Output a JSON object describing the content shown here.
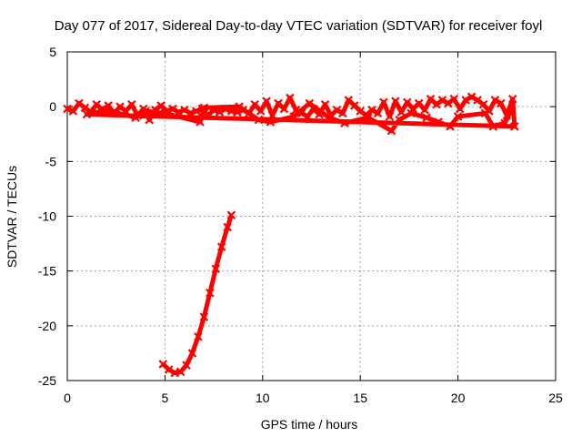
{
  "chart_data": {
    "type": "scatter",
    "title": "Day 077 of 2017, Sidereal Day-to-day VTEC variation (SDTVAR) for receiver foyl",
    "xlabel": "GPS time / hours",
    "ylabel": "SDTVAR / TECUs",
    "xlim": [
      0,
      25
    ],
    "ylim": [
      -25,
      5
    ],
    "xticks": [
      0,
      5,
      10,
      15,
      20,
      25
    ],
    "yticks": [
      5,
      0,
      -5,
      -10,
      -15,
      -20,
      -25
    ],
    "grid": true,
    "series": [
      {
        "name": "sdtvar-near-zero",
        "color": "#ff0000",
        "points": [
          [
            0.0,
            -0.2
          ],
          [
            0.3,
            -0.4
          ],
          [
            0.6,
            0.3
          ],
          [
            0.9,
            -0.1
          ],
          [
            1.2,
            -0.5
          ],
          [
            1.5,
            0.2
          ],
          [
            1.8,
            -0.3
          ],
          [
            2.1,
            0.1
          ],
          [
            2.4,
            -0.6
          ],
          [
            2.7,
            0.0
          ],
          [
            3.0,
            -0.4
          ],
          [
            3.3,
            0.2
          ],
          [
            3.6,
            -0.8
          ],
          [
            3.9,
            -0.2
          ],
          [
            4.2,
            -1.2
          ],
          [
            4.5,
            -0.3
          ],
          [
            4.8,
            0.1
          ],
          [
            5.1,
            -0.4
          ],
          [
            5.4,
            -0.2
          ],
          [
            5.7,
            -0.5
          ],
          [
            6.0,
            -0.3
          ],
          [
            6.3,
            -0.6
          ],
          [
            6.6,
            -0.4
          ],
          [
            6.9,
            -0.2
          ],
          [
            7.2,
            -0.8
          ],
          [
            7.5,
            -0.3
          ],
          [
            7.8,
            -0.5
          ],
          [
            8.1,
            -0.2
          ],
          [
            8.4,
            -0.4
          ],
          [
            8.7,
            -0.5
          ],
          [
            9.0,
            -0.3
          ],
          [
            9.3,
            -0.6
          ],
          [
            9.6,
            0.2
          ],
          [
            9.9,
            -0.4
          ],
          [
            10.2,
            0.5
          ],
          [
            10.5,
            -0.8
          ],
          [
            10.8,
            0.3
          ],
          [
            11.1,
            -0.2
          ],
          [
            11.4,
            0.8
          ],
          [
            11.7,
            -0.3
          ],
          [
            12.0,
            -0.6
          ],
          [
            12.3,
            -0.9
          ],
          [
            12.6,
            -0.2
          ],
          [
            12.9,
            -0.7
          ],
          [
            13.2,
            0.2
          ],
          [
            13.5,
            -0.8
          ],
          [
            13.8,
            -0.3
          ],
          [
            14.1,
            -0.6
          ],
          [
            14.4,
            0.6
          ],
          [
            14.7,
            0.1
          ],
          [
            15.0,
            -0.4
          ],
          [
            15.3,
            -0.8
          ],
          [
            15.6,
            -0.3
          ],
          [
            15.9,
            -0.6
          ],
          [
            16.2,
            0.4
          ],
          [
            16.5,
            -0.9
          ],
          [
            16.8,
            0.5
          ],
          [
            17.1,
            -0.5
          ],
          [
            17.4,
            0.4
          ],
          [
            17.7,
            -0.2
          ],
          [
            18.0,
            0.3
          ],
          [
            18.3,
            -0.3
          ],
          [
            18.6,
            0.7
          ],
          [
            18.9,
            0.2
          ],
          [
            19.2,
            0.6
          ],
          [
            19.5,
            0.3
          ],
          [
            19.8,
            0.7
          ],
          [
            20.1,
            -0.2
          ],
          [
            20.4,
            0.6
          ],
          [
            20.7,
            0.9
          ],
          [
            21.0,
            0.6
          ],
          [
            21.3,
            0.2
          ],
          [
            21.6,
            -0.4
          ],
          [
            21.9,
            0.6
          ],
          [
            22.2,
            0.3
          ],
          [
            22.5,
            -0.8
          ],
          [
            22.8,
            0.7
          ],
          [
            22.9,
            -1.8
          ],
          [
            1.0,
            -0.7
          ],
          [
            2.0,
            -0.3
          ],
          [
            3.5,
            -1.0
          ],
          [
            4.0,
            -0.4
          ],
          [
            5.0,
            -0.6
          ],
          [
            6.8,
            -1.4
          ],
          [
            7.0,
            -0.1
          ],
          [
            8.8,
            0.0
          ],
          [
            9.8,
            -1.2
          ],
          [
            10.4,
            -1.4
          ],
          [
            11.6,
            -0.9
          ],
          [
            12.4,
            0.3
          ],
          [
            13.4,
            -1.0
          ],
          [
            14.2,
            -1.5
          ],
          [
            15.4,
            -1.0
          ],
          [
            16.6,
            -2.2
          ],
          [
            17.0,
            -1.2
          ],
          [
            17.6,
            -0.6
          ],
          [
            18.4,
            -1.0
          ],
          [
            19.0,
            -1.4
          ],
          [
            19.6,
            -1.8
          ],
          [
            20.0,
            -0.9
          ],
          [
            21.4,
            -0.6
          ],
          [
            21.8,
            -1.8
          ],
          [
            22.4,
            -1.5
          ],
          [
            22.7,
            -0.4
          ]
        ]
      },
      {
        "name": "sdtvar-dip",
        "color": "#ff0000",
        "points": [
          [
            4.9,
            -23.5
          ],
          [
            5.2,
            -24.0
          ],
          [
            5.5,
            -24.3
          ],
          [
            5.8,
            -24.2
          ],
          [
            6.1,
            -23.6
          ],
          [
            6.4,
            -22.5
          ],
          [
            6.7,
            -21.0
          ],
          [
            7.0,
            -19.2
          ],
          [
            7.3,
            -17.0
          ],
          [
            7.6,
            -14.8
          ],
          [
            7.9,
            -12.8
          ],
          [
            8.2,
            -11.0
          ],
          [
            8.4,
            -9.9
          ]
        ]
      }
    ]
  }
}
